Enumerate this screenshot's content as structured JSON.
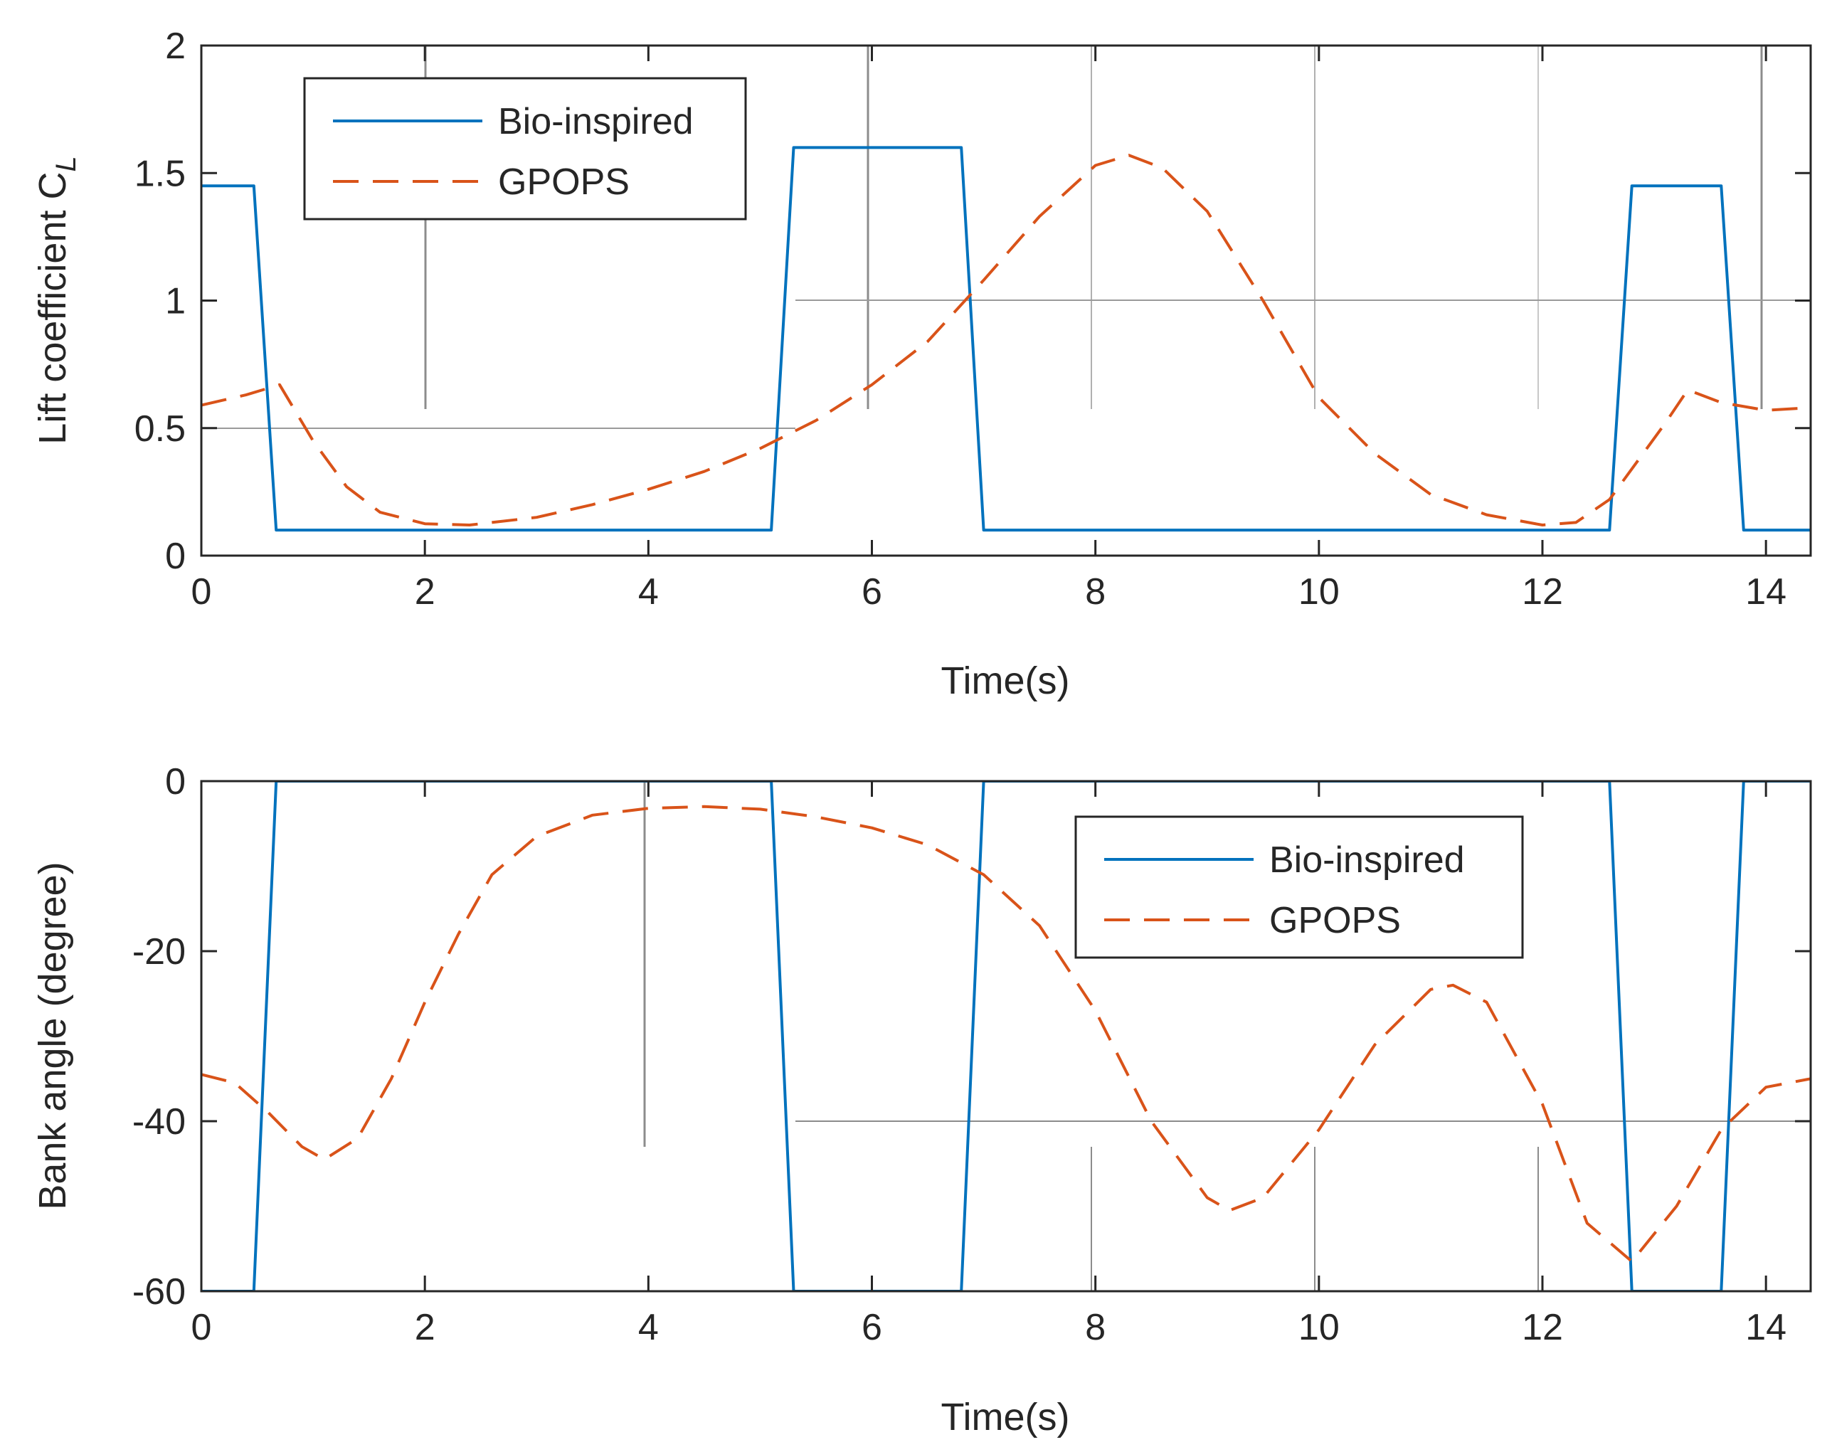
{
  "chart_data": [
    {
      "type": "line",
      "xlabel": "Time(s)",
      "ylabel": "Lift coefficient C",
      "ylabel_subscript": "L",
      "xlim": [
        0,
        14.4
      ],
      "ylim": [
        0,
        2
      ],
      "xticks": [
        "0",
        "2",
        "4",
        "6",
        "8",
        "10",
        "12",
        "14"
      ],
      "yticks": [
        "0",
        "0.5",
        "1",
        "1.5",
        "2"
      ],
      "legend_position": "top-left",
      "series": [
        {
          "name": "Bio-inspired",
          "color": "#0072BD",
          "style": "solid",
          "x": [
            0,
            0.47,
            0.67,
            5.1,
            5.3,
            6.8,
            7.0,
            12.6,
            12.8,
            13.6,
            13.8,
            14.4
          ],
          "y": [
            1.45,
            1.45,
            0.1,
            0.1,
            1.6,
            1.6,
            0.1,
            0.1,
            1.45,
            1.45,
            0.1,
            0.1
          ]
        },
        {
          "name": "GPOPS",
          "color": "#D95319",
          "style": "dashed",
          "x": [
            0,
            0.4,
            0.7,
            1.0,
            1.3,
            1.6,
            2.0,
            2.4,
            3.0,
            3.5,
            4.0,
            4.5,
            5.0,
            5.5,
            6.0,
            6.5,
            7.0,
            7.5,
            8.0,
            8.3,
            8.6,
            9.0,
            9.5,
            10.0,
            10.5,
            11.0,
            11.5,
            12.0,
            12.3,
            12.6,
            12.9,
            13.1,
            13.3,
            13.6,
            14.0,
            14.4
          ],
          "y": [
            0.59,
            0.63,
            0.67,
            0.45,
            0.27,
            0.17,
            0.125,
            0.12,
            0.15,
            0.2,
            0.26,
            0.33,
            0.42,
            0.53,
            0.67,
            0.84,
            1.08,
            1.33,
            1.53,
            1.57,
            1.52,
            1.35,
            1.0,
            0.62,
            0.4,
            0.24,
            0.16,
            0.12,
            0.13,
            0.22,
            0.4,
            0.52,
            0.65,
            0.6,
            0.57,
            0.58
          ]
        }
      ]
    },
    {
      "type": "line",
      "xlabel": "Time(s)",
      "ylabel": "Bank angle (degree)",
      "xlim": [
        0,
        14.4
      ],
      "ylim": [
        -60,
        0
      ],
      "xticks": [
        "0",
        "2",
        "4",
        "6",
        "8",
        "10",
        "12",
        "14"
      ],
      "yticks": [
        "-60",
        "-40",
        "-20",
        "0"
      ],
      "legend_position": "top-right",
      "series": [
        {
          "name": "Bio-inspired",
          "color": "#0072BD",
          "style": "solid",
          "x": [
            0,
            0.47,
            0.67,
            5.1,
            5.3,
            6.8,
            7.0,
            12.6,
            12.8,
            13.6,
            13.8,
            14.4
          ],
          "y": [
            -60,
            -60,
            0,
            0,
            -60,
            -60,
            0,
            0,
            -60,
            -60,
            0,
            0
          ]
        },
        {
          "name": "GPOPS",
          "color": "#D95319",
          "style": "dashed",
          "x": [
            0,
            0.3,
            0.6,
            0.9,
            1.1,
            1.4,
            1.7,
            2.0,
            2.3,
            2.6,
            3.0,
            3.5,
            4.0,
            4.5,
            5.0,
            5.5,
            6.0,
            6.5,
            7.0,
            7.5,
            8.0,
            8.5,
            9.0,
            9.2,
            9.5,
            10.0,
            10.5,
            11.0,
            11.2,
            11.5,
            12.0,
            12.4,
            12.8,
            13.2,
            13.6,
            14.0,
            14.4
          ],
          "y": [
            -34.5,
            -35.5,
            -39,
            -43,
            -44.5,
            -42,
            -35,
            -26,
            -18,
            -11,
            -6.5,
            -4,
            -3.2,
            -3,
            -3.3,
            -4.2,
            -5.5,
            -7.5,
            -11,
            -17,
            -27,
            -40,
            -49,
            -50.5,
            -49,
            -41,
            -31,
            -24.5,
            -24,
            -26,
            -38,
            -52,
            -56.5,
            -50,
            -41,
            -36,
            -35
          ]
        }
      ]
    }
  ]
}
